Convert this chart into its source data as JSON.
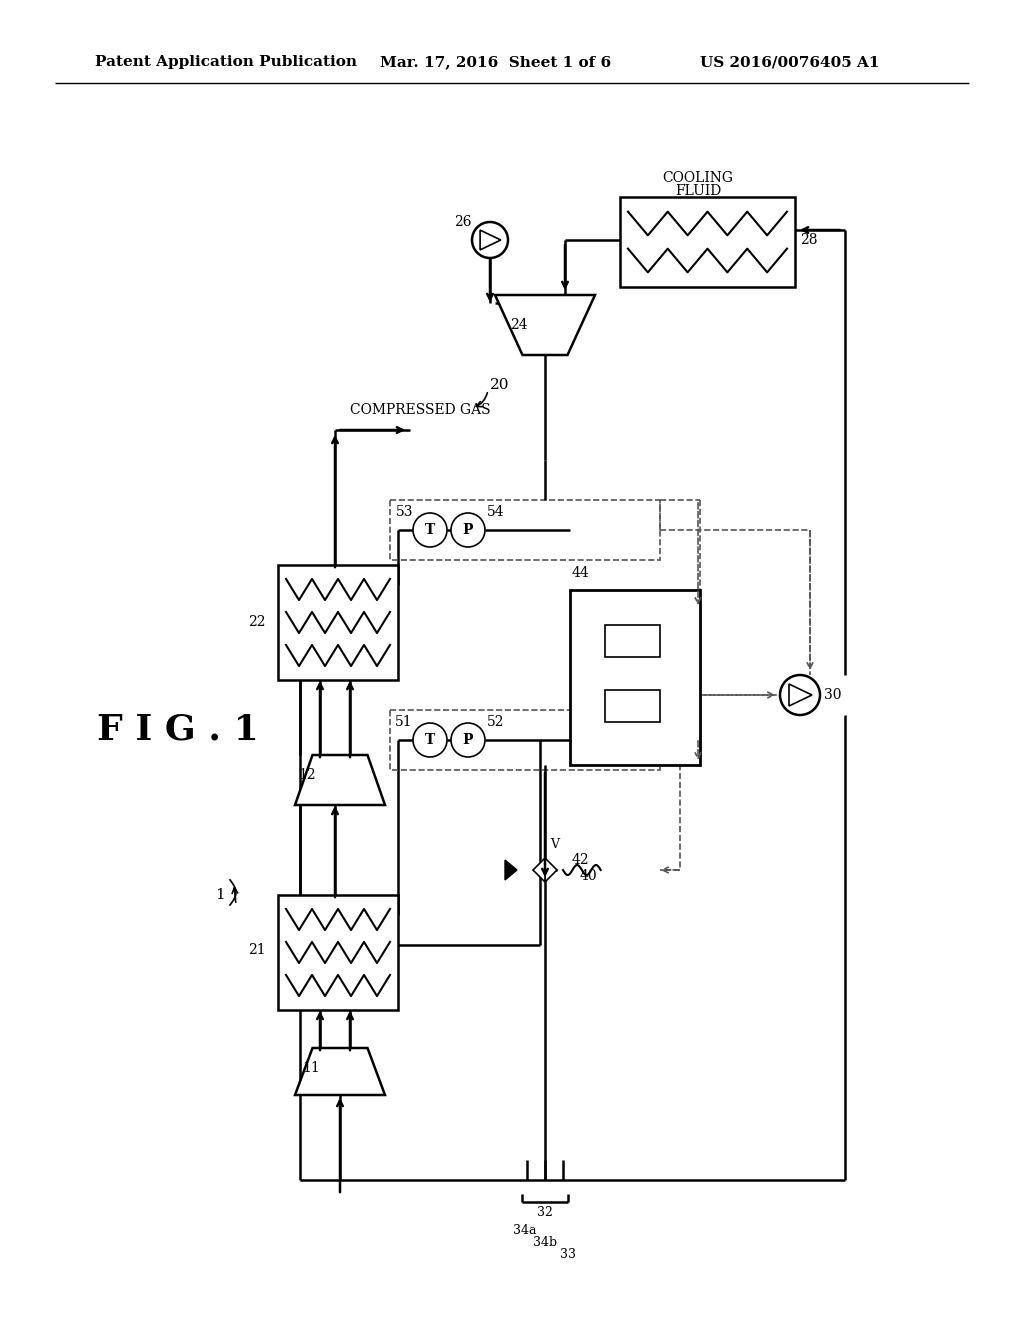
{
  "bg_color": "#ffffff",
  "header_left": "Patent Application Publication",
  "header_mid": "Mar. 17, 2016  Sheet 1 of 6",
  "header_right": "US 2016/0076405 A1"
}
